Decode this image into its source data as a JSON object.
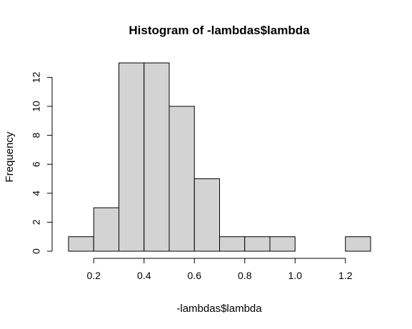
{
  "chart_data": {
    "type": "bar",
    "title": "Histogram of -lambdas$lambda",
    "xlabel": "-lambdas$lambda",
    "ylabel": "Frequency",
    "bins": [
      {
        "start": 0.1,
        "end": 0.2,
        "count": 1
      },
      {
        "start": 0.2,
        "end": 0.3,
        "count": 3
      },
      {
        "start": 0.3,
        "end": 0.4,
        "count": 13
      },
      {
        "start": 0.4,
        "end": 0.5,
        "count": 13
      },
      {
        "start": 0.5,
        "end": 0.6,
        "count": 10
      },
      {
        "start": 0.6,
        "end": 0.7,
        "count": 5
      },
      {
        "start": 0.7,
        "end": 0.8,
        "count": 1
      },
      {
        "start": 0.8,
        "end": 0.9,
        "count": 1
      },
      {
        "start": 0.9,
        "end": 1.0,
        "count": 1
      },
      {
        "start": 1.0,
        "end": 1.1,
        "count": 0
      },
      {
        "start": 1.1,
        "end": 1.2,
        "count": 0
      },
      {
        "start": 1.2,
        "end": 1.3,
        "count": 1
      }
    ],
    "xlim": [
      0.1,
      1.3
    ],
    "ylim": [
      0,
      13
    ],
    "xticks": [
      0.2,
      0.4,
      0.6,
      0.8,
      1.0,
      1.2
    ],
    "xtick_labels": [
      "0.2",
      "0.4",
      "0.6",
      "0.8",
      "1.0",
      "1.2"
    ],
    "yticks": [
      0,
      2,
      4,
      6,
      8,
      10,
      12
    ],
    "ytick_labels": [
      "0",
      "2",
      "4",
      "6",
      "8",
      "10",
      "12"
    ],
    "grid": false,
    "bar_fill": "#d3d3d3",
    "bar_stroke": "#000000"
  }
}
